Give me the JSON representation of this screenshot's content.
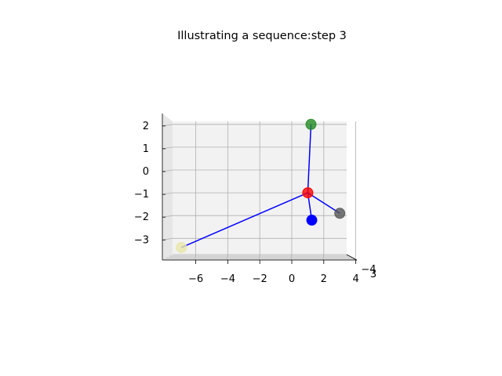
{
  "chart_data": {
    "type": "scatter",
    "title": "Illustrating a sequence:step 3",
    "xlabel": "",
    "ylabel": "",
    "zlabel": "",
    "grid": true,
    "x_ticks": [
      "−6",
      "−4",
      "−2",
      "0",
      "2",
      "4"
    ],
    "z_ticks": [
      "2",
      "1",
      "0",
      "−1",
      "−2",
      "−3"
    ],
    "depth_ticks_visible": [
      "−4",
      "3"
    ],
    "xlim": [
      -8,
      4.3
    ],
    "zlim": [
      -4,
      2.3
    ],
    "center": {
      "x": 1,
      "z": -1,
      "color": "#ff0000",
      "name": "red"
    },
    "points": [
      {
        "x": 1.2,
        "z": 2.0,
        "color": "#228b22",
        "name": "green"
      },
      {
        "x": 3.0,
        "z": -1.9,
        "color": "#555555",
        "name": "gray"
      },
      {
        "x": 1.25,
        "z": -2.2,
        "color": "#0000ff",
        "name": "blue"
      },
      {
        "x": -6.9,
        "z": -3.4,
        "color": "#e8e6a8",
        "name": "khaki"
      }
    ],
    "line_color": "#0000ff"
  }
}
